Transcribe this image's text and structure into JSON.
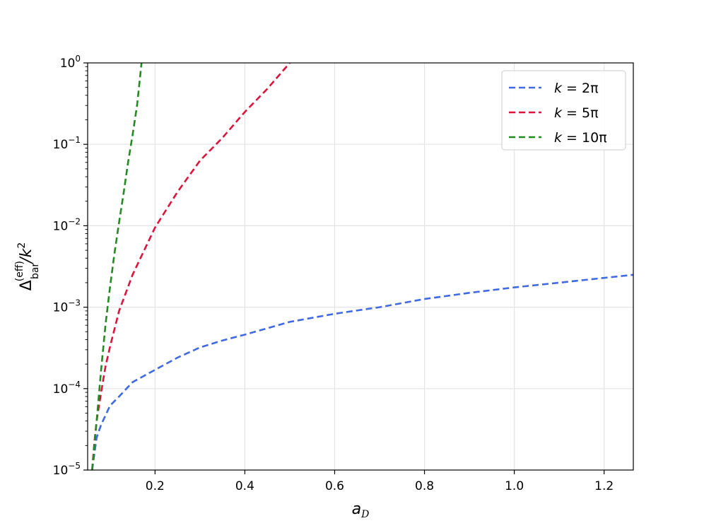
{
  "chart_data": {
    "type": "line",
    "title": "",
    "xlabel": {
      "base": "a",
      "sub": "D"
    },
    "ylabel": {
      "delta": "Δ",
      "sub": "bar",
      "sup": "(eff)",
      "rest": "/k",
      "pow": "2"
    },
    "xlim": [
      0.05,
      1.265
    ],
    "ylim_log10": [
      -5,
      0
    ],
    "yscale": "log",
    "grid": true,
    "legend_position": "top-right",
    "x_ticks": [
      {
        "value": 0.2,
        "label": "0.2"
      },
      {
        "value": 0.4,
        "label": "0.4"
      },
      {
        "value": 0.6,
        "label": "0.6"
      },
      {
        "value": 0.8,
        "label": "0.8"
      },
      {
        "value": 1.0,
        "label": "1.0"
      },
      {
        "value": 1.2,
        "label": "1.2"
      }
    ],
    "y_ticks": [
      {
        "exp": 0,
        "base": "10",
        "sup": "0"
      },
      {
        "exp": -1,
        "base": "10",
        "sup": "−1"
      },
      {
        "exp": -2,
        "base": "10",
        "sup": "−2"
      },
      {
        "exp": -3,
        "base": "10",
        "sup": "−3"
      },
      {
        "exp": -4,
        "base": "10",
        "sup": "−4"
      },
      {
        "exp": -5,
        "base": "10",
        "sup": "−5"
      }
    ],
    "series": [
      {
        "name": "k = 2π",
        "label_var": "k",
        "label_rhs": "2π",
        "color": "#4169e1",
        "x": [
          0.06,
          0.07,
          0.08,
          0.1,
          0.12,
          0.15,
          0.2,
          0.25,
          0.3,
          0.35,
          0.4,
          0.5,
          0.6,
          0.7,
          0.8,
          0.9,
          1.0,
          1.1,
          1.2,
          1.265
        ],
        "y": [
          1e-05,
          2.5e-05,
          3.6e-05,
          6.2e-05,
          8e-05,
          0.00012,
          0.00017,
          0.00024,
          0.00032,
          0.00039,
          0.00046,
          0.00066,
          0.00083,
          0.001,
          0.00126,
          0.0015,
          0.00175,
          0.002,
          0.00229,
          0.0025
        ]
      },
      {
        "name": "k = 5π",
        "label_var": "k",
        "label_rhs": "5π",
        "color": "#dc143c",
        "x": [
          0.06,
          0.065,
          0.07,
          0.08,
          0.09,
          0.1,
          0.12,
          0.15,
          0.2,
          0.25,
          0.3,
          0.35,
          0.4,
          0.45,
          0.5
        ],
        "y": [
          1e-05,
          2.2e-05,
          4e-05,
          9e-05,
          0.00019,
          0.00033,
          0.0009,
          0.0025,
          0.0095,
          0.026,
          0.063,
          0.12,
          0.25,
          0.48,
          1.0
        ]
      },
      {
        "name": "k = 10π",
        "label_var": "k",
        "label_rhs": "10π",
        "color": "#228b22",
        "x": [
          0.06,
          0.07,
          0.08,
          0.09,
          0.1,
          0.11,
          0.12,
          0.13,
          0.14,
          0.15,
          0.16,
          0.17
        ],
        "y": [
          1e-05,
          4e-05,
          0.00017,
          0.00063,
          0.0018,
          0.0047,
          0.011,
          0.025,
          0.06,
          0.13,
          0.3,
          1.0
        ]
      }
    ]
  }
}
